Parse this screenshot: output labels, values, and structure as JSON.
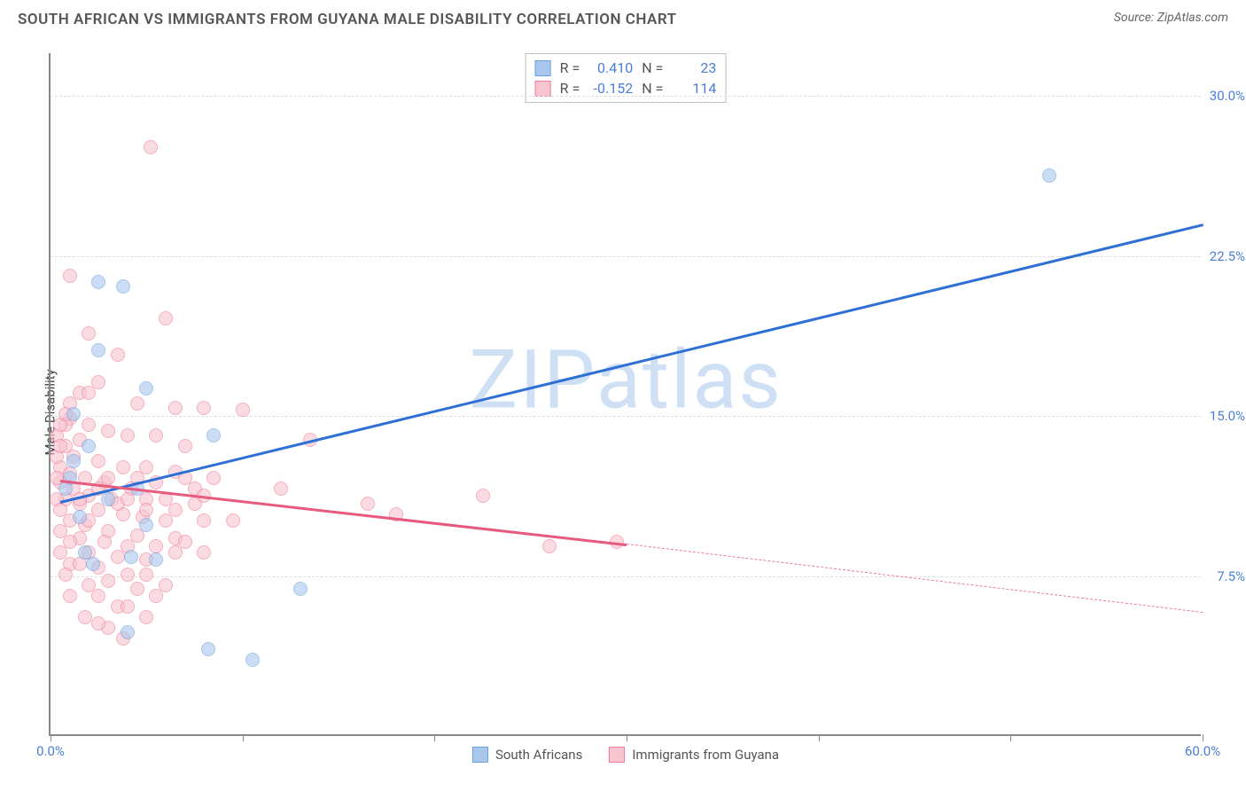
{
  "title": "SOUTH AFRICAN VS IMMIGRANTS FROM GUYANA MALE DISABILITY CORRELATION CHART",
  "source_label": "Source: ",
  "source_name": "ZipAtlas.com",
  "watermark": "ZIPatlas",
  "ylabel": "Male Disability",
  "chart": {
    "type": "scatter",
    "xlim": [
      0,
      60
    ],
    "ylim": [
      0,
      32
    ],
    "yticks": [
      7.5,
      15.0,
      22.5,
      30.0
    ],
    "ytick_labels": [
      "7.5%",
      "15.0%",
      "22.5%",
      "30.0%"
    ],
    "xticks": [
      0,
      10,
      20,
      30,
      40,
      50,
      60
    ],
    "xtick_labels": {
      "0": "0.0%",
      "60": "60.0%"
    },
    "background_color": "#ffffff",
    "grid_color": "#dddddd",
    "axis_color": "#888888",
    "tick_label_color": "#4a7fd6",
    "marker_size": 16,
    "marker_opacity": 0.6,
    "series": [
      {
        "name": "South Africans",
        "fill_color": "#a9c7ed",
        "stroke_color": "#6a9fe0",
        "line_color": "#2d6fd4",
        "R": "0.410",
        "N": "23",
        "trend_start": [
          0.5,
          11.0
        ],
        "trend_end": [
          60,
          24.0
        ],
        "trend_solid_end": [
          60,
          24.0
        ],
        "points": [
          [
            2.5,
            21.2
          ],
          [
            3.8,
            21.0
          ],
          [
            2.5,
            18.0
          ],
          [
            5.0,
            16.2
          ],
          [
            1.2,
            15.0
          ],
          [
            2.0,
            13.5
          ],
          [
            1.0,
            12.0
          ],
          [
            0.8,
            11.5
          ],
          [
            8.5,
            14.0
          ],
          [
            1.5,
            10.2
          ],
          [
            5.0,
            9.8
          ],
          [
            1.8,
            8.5
          ],
          [
            2.2,
            8.0
          ],
          [
            4.2,
            8.3
          ],
          [
            5.5,
            8.2
          ],
          [
            13.0,
            6.8
          ],
          [
            4.0,
            4.8
          ],
          [
            8.2,
            4.0
          ],
          [
            10.5,
            3.5
          ],
          [
            52.0,
            26.2
          ],
          [
            1.2,
            12.8
          ],
          [
            3.0,
            11.0
          ],
          [
            4.5,
            11.5
          ]
        ]
      },
      {
        "name": "Immigrants from Guyana",
        "fill_color": "#f7c4cf",
        "stroke_color": "#ed7b96",
        "line_color": "#e85a7d",
        "R": "-0.152",
        "N": "114",
        "trend_start": [
          0.5,
          12.0
        ],
        "trend_end": [
          60,
          5.8
        ],
        "trend_solid_end": [
          30,
          9.0
        ],
        "points": [
          [
            5.2,
            27.5
          ],
          [
            1.0,
            21.5
          ],
          [
            6.0,
            19.5
          ],
          [
            2.0,
            18.8
          ],
          [
            3.5,
            17.8
          ],
          [
            2.5,
            16.5
          ],
          [
            4.5,
            15.5
          ],
          [
            6.5,
            15.3
          ],
          [
            8.0,
            15.3
          ],
          [
            10.0,
            15.2
          ],
          [
            1.0,
            14.8
          ],
          [
            2.0,
            14.5
          ],
          [
            3.0,
            14.2
          ],
          [
            4.0,
            14.0
          ],
          [
            5.5,
            14.0
          ],
          [
            7.0,
            13.5
          ],
          [
            1.5,
            13.8
          ],
          [
            0.8,
            13.5
          ],
          [
            13.5,
            13.8
          ],
          [
            1.2,
            13.0
          ],
          [
            2.5,
            12.8
          ],
          [
            3.8,
            12.5
          ],
          [
            5.0,
            12.5
          ],
          [
            6.5,
            12.3
          ],
          [
            8.5,
            12.0
          ],
          [
            0.5,
            12.5
          ],
          [
            1.0,
            12.2
          ],
          [
            1.8,
            12.0
          ],
          [
            2.8,
            11.8
          ],
          [
            4.2,
            11.5
          ],
          [
            0.5,
            11.8
          ],
          [
            1.2,
            11.5
          ],
          [
            2.0,
            11.2
          ],
          [
            3.2,
            11.0
          ],
          [
            5.0,
            11.0
          ],
          [
            7.5,
            10.8
          ],
          [
            0.8,
            11.0
          ],
          [
            1.5,
            10.8
          ],
          [
            2.5,
            10.5
          ],
          [
            3.8,
            10.3
          ],
          [
            4.8,
            10.2
          ],
          [
            6.0,
            10.0
          ],
          [
            8.0,
            10.0
          ],
          [
            9.5,
            10.0
          ],
          [
            1.0,
            10.0
          ],
          [
            1.8,
            9.8
          ],
          [
            3.0,
            9.5
          ],
          [
            4.5,
            9.3
          ],
          [
            6.5,
            9.2
          ],
          [
            0.5,
            9.5
          ],
          [
            1.5,
            9.2
          ],
          [
            2.8,
            9.0
          ],
          [
            4.0,
            8.8
          ],
          [
            5.5,
            8.8
          ],
          [
            7.0,
            9.0
          ],
          [
            2.0,
            8.5
          ],
          [
            3.5,
            8.3
          ],
          [
            5.0,
            8.2
          ],
          [
            6.5,
            8.5
          ],
          [
            8.0,
            8.5
          ],
          [
            1.0,
            8.0
          ],
          [
            2.5,
            7.8
          ],
          [
            4.0,
            7.5
          ],
          [
            3.0,
            7.2
          ],
          [
            5.0,
            7.5
          ],
          [
            2.0,
            7.0
          ],
          [
            4.5,
            6.8
          ],
          [
            6.0,
            7.0
          ],
          [
            2.5,
            6.5
          ],
          [
            3.5,
            6.0
          ],
          [
            5.0,
            5.5
          ],
          [
            3.0,
            5.0
          ],
          [
            16.5,
            10.8
          ],
          [
            18.0,
            10.3
          ],
          [
            22.5,
            11.2
          ],
          [
            26.0,
            8.8
          ],
          [
            29.5,
            9.0
          ],
          [
            12.0,
            11.5
          ],
          [
            0.3,
            13.0
          ],
          [
            0.3,
            14.0
          ],
          [
            0.3,
            12.0
          ],
          [
            0.3,
            11.0
          ],
          [
            0.5,
            10.5
          ],
          [
            0.5,
            13.5
          ],
          [
            0.8,
            14.5
          ],
          [
            1.0,
            15.5
          ],
          [
            1.5,
            16.0
          ],
          [
            2.0,
            16.0
          ],
          [
            0.5,
            14.5
          ],
          [
            0.8,
            15.0
          ],
          [
            1.5,
            11.0
          ],
          [
            2.0,
            10.0
          ],
          [
            2.5,
            11.5
          ],
          [
            3.0,
            12.0
          ],
          [
            3.5,
            10.8
          ],
          [
            4.0,
            11.0
          ],
          [
            4.5,
            12.0
          ],
          [
            5.0,
            10.5
          ],
          [
            5.5,
            11.8
          ],
          [
            6.0,
            11.0
          ],
          [
            6.5,
            10.5
          ],
          [
            7.0,
            12.0
          ],
          [
            7.5,
            11.5
          ],
          [
            8.0,
            11.2
          ],
          [
            1.8,
            5.5
          ],
          [
            2.5,
            5.2
          ],
          [
            3.8,
            4.5
          ],
          [
            1.0,
            6.5
          ],
          [
            0.5,
            8.5
          ],
          [
            1.0,
            9.0
          ],
          [
            1.5,
            8.0
          ],
          [
            0.8,
            7.5
          ],
          [
            4.0,
            6.0
          ],
          [
            5.5,
            6.5
          ]
        ]
      }
    ]
  },
  "stats_labels": {
    "R": "R =",
    "N": "N ="
  },
  "legend_items": [
    {
      "label": "South Africans",
      "fill": "#a9c7ed",
      "stroke": "#6a9fe0"
    },
    {
      "label": "Immigrants from Guyana",
      "fill": "#f7c4cf",
      "stroke": "#ed7b96"
    }
  ]
}
